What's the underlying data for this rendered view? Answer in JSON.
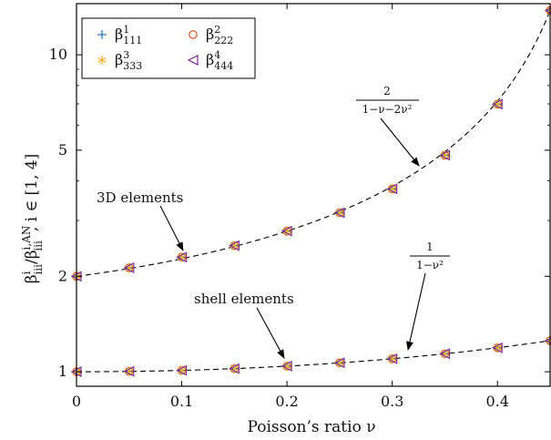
{
  "chart_data": {
    "type": "scatter",
    "xlabel": "Poisson’s ratio ν",
    "ylabel": "β",
    "ylabel_sup": "i",
    "ylabel_sub": "iii",
    "ylabel_den": "/β",
    "ylabel_den_sup": "i,AN",
    "ylabel_den_sub": "iii",
    "ylabel_range": ",  i ∈ [1, 4]",
    "x_ticks": [
      "0",
      "0.1",
      "0.2",
      "0.3",
      "0.4"
    ],
    "y_ticks": [
      "1",
      "2",
      "5",
      "10"
    ],
    "xlim": [
      0,
      0.45
    ],
    "ylim": [
      0.9,
      14.5
    ],
    "yscale": "log",
    "grid": false,
    "legend_position": "top-left",
    "x": [
      0,
      0.05,
      0.1,
      0.15,
      0.2,
      0.25,
      0.3,
      0.35,
      0.4,
      0.45
    ],
    "series": [
      {
        "name": "β¹₁₁₁",
        "label_base": "β",
        "sup": "1",
        "sub": "111",
        "marker": "plus",
        "color": "#1f77b4",
        "y_3d": [
          2.0,
          2.128,
          2.299,
          2.5,
          2.778,
          3.175,
          3.774,
          4.819,
          6.984,
          13.793
        ],
        "y_shell": [
          1.0,
          1.003,
          1.01,
          1.023,
          1.042,
          1.067,
          1.099,
          1.14,
          1.19,
          1.253
        ]
      },
      {
        "name": "β²₂₂₂",
        "label_base": "β",
        "sup": "2",
        "sub": "222",
        "marker": "circle",
        "color": "#d9541a",
        "y_3d": [
          2.0,
          2.128,
          2.299,
          2.5,
          2.778,
          3.175,
          3.774,
          4.819,
          6.984,
          13.793
        ],
        "y_shell": [
          1.0,
          1.003,
          1.01,
          1.023,
          1.042,
          1.067,
          1.099,
          1.14,
          1.19,
          1.253
        ]
      },
      {
        "name": "β³₃₃₃",
        "label_base": "β",
        "sup": "3",
        "sub": "333",
        "marker": "asterisk",
        "color": "#edb120",
        "y_3d": [
          2.0,
          2.128,
          2.299,
          2.5,
          2.778,
          3.175,
          3.774,
          4.819,
          6.984,
          13.793
        ],
        "y_shell": [
          1.0,
          1.003,
          1.01,
          1.023,
          1.042,
          1.067,
          1.099,
          1.14,
          1.19,
          1.253
        ]
      },
      {
        "name": "β⁴₄₄₄",
        "label_base": "β",
        "sup": "4",
        "sub": "444",
        "marker": "triangle-left",
        "color": "#7e2f8e",
        "y_3d": [
          2.0,
          2.128,
          2.299,
          2.5,
          2.778,
          3.175,
          3.774,
          4.819,
          6.984,
          13.793
        ],
        "y_shell": [
          1.0,
          1.003,
          1.01,
          1.023,
          1.042,
          1.067,
          1.099,
          1.14,
          1.19,
          1.253
        ]
      }
    ],
    "curves": [
      {
        "name": "2/(1−ν−2ν²)",
        "numerator": "2",
        "denominator": "1−ν−2ν²",
        "style": "dashed"
      },
      {
        "name": "1/(1−ν²)",
        "numerator": "1",
        "denominator": "1−ν²",
        "style": "dashed"
      }
    ],
    "annotations": [
      {
        "text": "3D elements",
        "x": 0.1,
        "y": 2.299
      },
      {
        "text": "shell elements",
        "x": 0.2,
        "y": 1.042
      }
    ]
  }
}
